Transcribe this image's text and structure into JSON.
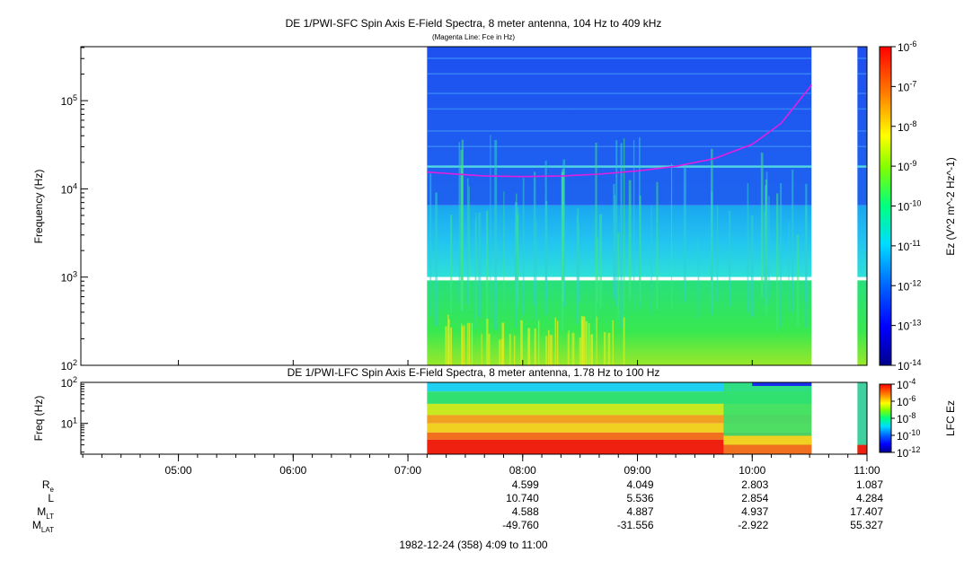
{
  "chart_data": [
    {
      "type": "heatmap",
      "title": "DE 1/PWI-SFC  Spin Axis E-Field Spectra, 8 meter antenna, 104 Hz to 409 kHz",
      "subtitle": "(Magenta Line: Fce in Hz)",
      "ylabel": "Frequency (Hz)",
      "yscale": "log",
      "ylim": [
        100,
        409000
      ],
      "y_ticks": [
        "10^2",
        "10^3",
        "10^4",
        "10^5"
      ],
      "x_ticks": [
        "05:00",
        "06:00",
        "07:00",
        "08:00",
        "09:00",
        "10:00",
        "11:00"
      ],
      "xlim": [
        "04:09",
        "11:00"
      ],
      "data_coverage": [
        [
          "07:10",
          "10:31"
        ],
        [
          "10:55",
          "11:00"
        ]
      ],
      "data_gap_band_hz": [
        920,
        1000
      ],
      "colorbar": {
        "label": "Ez (V^2 m^-2 Hz^-1)",
        "scale": "log",
        "range": [
          1e-14,
          1e-06
        ],
        "tick_labels": [
          "10^-6",
          "10^-7",
          "10^-8",
          "10^-9",
          "10^-10",
          "10^-11",
          "10^-12",
          "10^-13",
          "10^-14"
        ]
      },
      "overlay_line": {
        "name": "Fce",
        "color": "#e020e0",
        "x": [
          "07:10",
          "07:40",
          "08:00",
          "08:20",
          "08:40",
          "09:00",
          "09:20",
          "09:40",
          "10:00",
          "10:15",
          "10:31"
        ],
        "y": [
          15500,
          14000,
          13800,
          14000,
          14700,
          16000,
          18000,
          22000,
          32000,
          55000,
          150000
        ]
      }
    },
    {
      "type": "heatmap",
      "title": "DE 1/PWI-LFC  Spin Axis E-Field Spectra, 8 meter antenna, 1.78 Hz to 100 Hz",
      "ylabel": "Freq (Hz)",
      "yscale": "log",
      "ylim": [
        1.78,
        100
      ],
      "y_ticks": [
        "10^1",
        "10^2"
      ],
      "colorbar": {
        "label": "LFC Ez",
        "scale": "log",
        "range": [
          1e-12,
          0.0001
        ],
        "tick_labels": [
          "10^-4",
          "10^-6",
          "10^-8",
          "10^-10",
          "10^-12"
        ]
      }
    }
  ],
  "ephemeris": {
    "rows": [
      {
        "label": "R",
        "sub": "e",
        "values": [
          "4.599",
          "4.049",
          "2.803",
          "1.087"
        ]
      },
      {
        "label": "L",
        "sub": "",
        "values": [
          "10.740",
          "5.536",
          "2.854",
          "4.284"
        ]
      },
      {
        "label": "M",
        "sub": "LT",
        "values": [
          "4.588",
          "4.887",
          "4.937",
          "17.407"
        ]
      },
      {
        "label": "M",
        "sub": "LAT",
        "values": [
          "-49.760",
          "-31.556",
          "-2.922",
          "55.327"
        ]
      }
    ],
    "times": [
      "08:00",
      "09:00",
      "10:00",
      "11:00"
    ],
    "footer": "1982-12-24 (358) 4:09 to 11:00"
  },
  "colors": {
    "overlay": "#e020e0"
  }
}
